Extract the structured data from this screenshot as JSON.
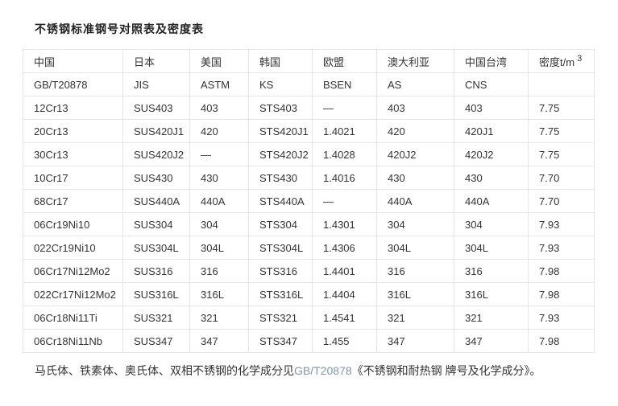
{
  "page": {
    "title": "不锈钢标准钢号对照表及密度表"
  },
  "colors": {
    "link_blue": "#3e7fc1",
    "footer_link": "#7e96ad",
    "text": "#333333",
    "border": "#e4e4e4"
  },
  "table": {
    "columns": [
      "中国",
      "日本",
      "美国",
      "韩国",
      "欧盟",
      "澳大利亚",
      "中国台湾"
    ],
    "density_label": "密度t/m",
    "density_sup": "3",
    "standards": [
      "GB/T20878",
      "JIS",
      "ASTM",
      "KS",
      "BSEN",
      "AS",
      "CNS",
      ""
    ],
    "rows": [
      {
        "cells": [
          "12Cr13",
          "SUS403",
          "403",
          "STS403",
          "—",
          "403",
          "403",
          "7.75"
        ],
        "link": true
      },
      {
        "cells": [
          "20Cr13",
          "SUS420J1",
          "420",
          "STS420J1",
          "1.4021",
          "420",
          "420J1",
          "7.75"
        ],
        "link": false
      },
      {
        "cells": [
          "30Cr13",
          "SUS420J2",
          "—",
          "STS420J2",
          "1.4028",
          "420J2",
          "420J2",
          "7.75"
        ],
        "link": false
      },
      {
        "cells": [
          "10Cr17",
          "SUS430",
          "430",
          "STS430",
          "1.4016",
          "430",
          "430",
          "7.70"
        ],
        "link": true
      },
      {
        "cells": [
          "68Cr17",
          "SUS440A",
          "440A",
          "STS440A",
          "—",
          "440A",
          "440A",
          "7.70"
        ],
        "link": true
      },
      {
        "cells": [
          "06Cr19Ni10",
          "SUS304",
          "304",
          "STS304",
          "1.4301",
          "304",
          "304",
          "7.93"
        ],
        "link": true
      },
      {
        "cells": [
          "022Cr19Ni10",
          "SUS304L",
          "304L",
          "STS304L",
          "1.4306",
          "304L",
          "304L",
          "7.93"
        ],
        "link": true
      },
      {
        "cells": [
          "06Cr17Ni12Mo2",
          "SUS316",
          "316",
          "STS316",
          "1.4401",
          "316",
          "316",
          "7.98"
        ],
        "link": true
      },
      {
        "cells": [
          "022Cr17Ni12Mo2",
          "SUS316L",
          "316L",
          "STS316L",
          "1.4404",
          "316L",
          "316L",
          "7.98"
        ],
        "link": true
      },
      {
        "cells": [
          "06Cr18Ni11Ti",
          "SUS321",
          "321",
          "STS321",
          "1.4541",
          "321",
          "321",
          "7.93"
        ],
        "link": true
      },
      {
        "cells": [
          "06Cr18Ni11Nb",
          "SUS347",
          "347",
          "STS347",
          "1.455",
          "347",
          "347",
          "7.98"
        ],
        "link": false
      }
    ]
  },
  "footer": {
    "prefix": "马氏体、铁素体、奥氏体、双相不锈钢的化学成分见",
    "link": "GB/T20878",
    "suffix": "《不锈钢和耐热钢 牌号及化学成分》。"
  }
}
